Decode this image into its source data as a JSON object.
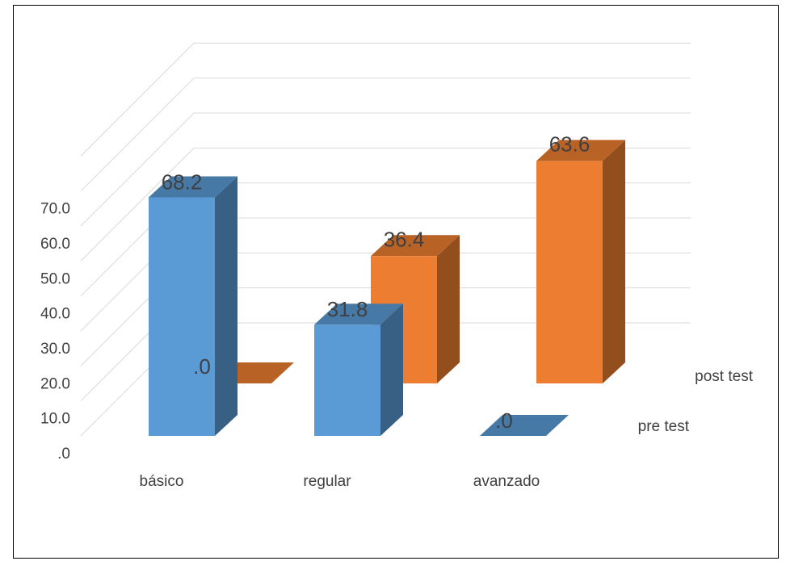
{
  "chart_data": {
    "type": "bar",
    "subtype": "3d-column",
    "categories": [
      "básico",
      "regular",
      "avanzado"
    ],
    "series": [
      {
        "name": "pre test",
        "values": [
          68.2,
          31.8,
          0.0
        ],
        "labels": [
          "68.2",
          "31.8",
          ".0"
        ],
        "color": "#5B9BD5"
      },
      {
        "name": "post test",
        "values": [
          0.0,
          36.4,
          63.6
        ],
        "labels": [
          ".0",
          "36.4",
          "63.6"
        ],
        "color": "#ED7D31"
      }
    ],
    "y_ticks": [
      ".0",
      "10.0",
      "20.0",
      "30.0",
      "40.0",
      "50.0",
      "60.0",
      "70.0"
    ],
    "ylim": [
      0,
      70
    ],
    "grid": true,
    "title": "",
    "xlabel": "",
    "ylabel": ""
  }
}
